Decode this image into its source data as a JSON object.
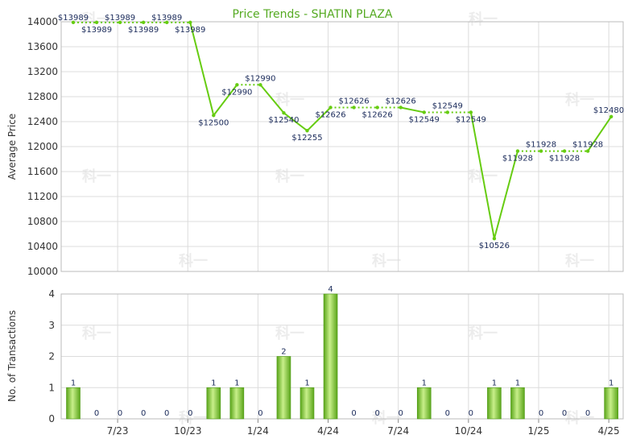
{
  "chart_data": [
    {
      "type": "line",
      "title": "Price Trends - SHATIN PLAZA",
      "ylabel": "Average Price",
      "ylim": [
        10000,
        14000
      ],
      "yticks": [
        10000,
        10400,
        10800,
        11200,
        11600,
        12000,
        12400,
        12800,
        13200,
        13600,
        14000
      ],
      "series": [
        {
          "values": [
            13989,
            13989,
            13989,
            13989,
            13989,
            13989,
            12500,
            12990,
            12990,
            12540,
            12255,
            12626,
            12626,
            12626,
            12626,
            12549,
            12549,
            12549,
            10526,
            11928,
            11928,
            11928,
            11928,
            12480
          ],
          "labels": [
            "$13989",
            "$13989",
            "$13989",
            "$13989",
            "$13989",
            "$13989",
            "$12500",
            "$12990",
            "$12990",
            "$12540",
            "$12255",
            "$12626",
            "$12626",
            "$12626",
            "$12626",
            "$12549",
            "$12549",
            "$12549",
            "$10526",
            "$11928",
            "$11928",
            "$11928",
            "$11928",
            "$12480"
          ]
        }
      ],
      "grid": true,
      "colors": {
        "line": "#66cc11",
        "dotted": "#66cc11"
      }
    },
    {
      "type": "bar",
      "ylabel": "No. of Transactions",
      "ylim": [
        0,
        4
      ],
      "yticks": [
        0,
        1,
        2,
        3,
        4
      ],
      "xticks": [
        "7/23",
        "10/23",
        "1/24",
        "4/24",
        "7/24",
        "10/24",
        "1/25",
        "4/25"
      ],
      "values": [
        1,
        0,
        0,
        0,
        0,
        0,
        1,
        1,
        0,
        2,
        1,
        4,
        0,
        0,
        0,
        1,
        0,
        0,
        1,
        1,
        0,
        0,
        0,
        1
      ],
      "grid": true,
      "colors": {
        "bar": "#77c22a"
      }
    }
  ]
}
